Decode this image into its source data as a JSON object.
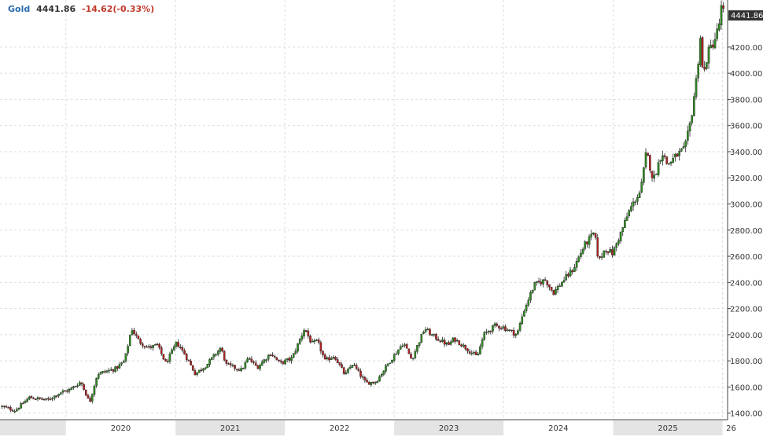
{
  "header": {
    "symbol": "Gold",
    "price": "4441.86",
    "change": "-14.62(-0.33%)"
  },
  "colors": {
    "up": "#2e8b20",
    "down": "#b22222",
    "wick": "#222222",
    "grid": "#dddddd",
    "symbol": "#2b6cb0",
    "price": "#333333",
    "change": "#c0392b",
    "band": "#e4e4e4",
    "last_box": "#333333"
  },
  "chart_data": {
    "type": "candlestick",
    "title": "",
    "xlabel": "",
    "ylabel": "",
    "ylim": [
      1350,
      4560
    ],
    "xlim": [
      "2019-05-26",
      "2026-01-18"
    ],
    "y_ticks": [
      "1400.00",
      "1600.00",
      "1800.00",
      "2000.00",
      "2200.00",
      "2400.00",
      "2600.00",
      "2800.00",
      "3000.00",
      "3200.00",
      "3400.00",
      "3600.00",
      "3800.00",
      "4000.00",
      "4200.00"
    ],
    "last_value_label": "4441.86",
    "x_labels": [
      {
        "text": "2020",
        "date": "2020-01-01"
      },
      {
        "text": "2021",
        "date": "2021-01-01"
      },
      {
        "text": "2022",
        "date": "2022-01-01"
      },
      {
        "text": "2023",
        "date": "2023-01-01"
      },
      {
        "text": "2024",
        "date": "2024-01-01"
      },
      {
        "text": "2025",
        "date": "2025-01-01"
      },
      {
        "text": "26",
        "date": "2026-01-01"
      }
    ],
    "grid": true,
    "frequency": "weekly",
    "start_date": "2019-06-02",
    "anchors": [
      [
        "2019-06-02",
        1450
      ],
      [
        "2019-07-15",
        1420
      ],
      [
        "2019-09-01",
        1520
      ],
      [
        "2019-11-01",
        1500
      ],
      [
        "2019-12-15",
        1560
      ],
      [
        "2020-01-15",
        1580
      ],
      [
        "2020-02-20",
        1640
      ],
      [
        "2020-03-20",
        1480
      ],
      [
        "2020-04-15",
        1700
      ],
      [
        "2020-06-15",
        1740
      ],
      [
        "2020-07-15",
        1800
      ],
      [
        "2020-08-07",
        2050
      ],
      [
        "2020-09-01",
        1950
      ],
      [
        "2020-10-01",
        1900
      ],
      [
        "2020-11-01",
        1920
      ],
      [
        "2020-11-30",
        1780
      ],
      [
        "2021-01-05",
        1940
      ],
      [
        "2021-02-01",
        1850
      ],
      [
        "2021-03-08",
        1700
      ],
      [
        "2021-04-15",
        1770
      ],
      [
        "2021-06-01",
        1900
      ],
      [
        "2021-06-20",
        1770
      ],
      [
        "2021-08-09",
        1730
      ],
      [
        "2021-09-01",
        1820
      ],
      [
        "2021-10-01",
        1750
      ],
      [
        "2021-11-15",
        1860
      ],
      [
        "2021-12-15",
        1780
      ],
      [
        "2022-01-25",
        1820
      ],
      [
        "2022-03-08",
        2050
      ],
      [
        "2022-04-01",
        1930
      ],
      [
        "2022-04-20",
        1950
      ],
      [
        "2022-05-15",
        1800
      ],
      [
        "2022-06-15",
        1840
      ],
      [
        "2022-07-21",
        1690
      ],
      [
        "2022-08-15",
        1780
      ],
      [
        "2022-09-28",
        1630
      ],
      [
        "2022-11-01",
        1640
      ],
      [
        "2022-12-15",
        1790
      ],
      [
        "2023-02-01",
        1940
      ],
      [
        "2023-02-28",
        1810
      ],
      [
        "2023-04-13",
        2050
      ],
      [
        "2023-05-04",
        2000
      ],
      [
        "2023-06-30",
        1920
      ],
      [
        "2023-07-20",
        1970
      ],
      [
        "2023-10-05",
        1830
      ],
      [
        "2023-10-27",
        2000
      ],
      [
        "2023-12-04",
        2070
      ],
      [
        "2023-12-28",
        2060
      ],
      [
        "2024-02-15",
        2000
      ],
      [
        "2024-03-08",
        2180
      ],
      [
        "2024-04-12",
        2380
      ],
      [
        "2024-05-20",
        2420
      ],
      [
        "2024-06-15",
        2320
      ],
      [
        "2024-07-20",
        2420
      ],
      [
        "2024-08-20",
        2500
      ],
      [
        "2024-09-26",
        2680
      ],
      [
        "2024-10-30",
        2780
      ],
      [
        "2024-11-14",
        2560
      ],
      [
        "2024-12-05",
        2660
      ],
      [
        "2024-12-30",
        2620
      ],
      [
        "2025-01-30",
        2800
      ],
      [
        "2025-02-24",
        2950
      ],
      [
        "2025-03-20",
        3050
      ],
      [
        "2025-04-03",
        3100
      ],
      [
        "2025-04-22",
        3400
      ],
      [
        "2025-05-15",
        3180
      ],
      [
        "2025-06-13",
        3400
      ],
      [
        "2025-07-01",
        3300
      ],
      [
        "2025-08-05",
        3380
      ],
      [
        "2025-08-28",
        3420
      ],
      [
        "2025-09-18",
        3650
      ],
      [
        "2025-10-08",
        4000
      ],
      [
        "2025-10-20",
        4300
      ],
      [
        "2025-10-28",
        3950
      ],
      [
        "2025-11-12",
        4150
      ],
      [
        "2025-12-05",
        4250
      ],
      [
        "2025-12-20",
        4360
      ],
      [
        "2025-12-27",
        4500
      ],
      [
        "2026-01-10",
        4441.86
      ]
    ]
  }
}
